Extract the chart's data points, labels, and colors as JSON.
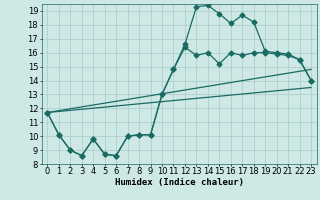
{
  "xlabel": "Humidex (Indice chaleur)",
  "bg_color": "#cde8e5",
  "grid_color": "#aecfcc",
  "line_color": "#1a6b65",
  "xlim": [
    -0.5,
    23.5
  ],
  "ylim": [
    8,
    19.5
  ],
  "yticks": [
    8,
    9,
    10,
    11,
    12,
    13,
    14,
    15,
    16,
    17,
    18,
    19
  ],
  "xticks": [
    0,
    1,
    2,
    3,
    4,
    5,
    6,
    7,
    8,
    9,
    10,
    11,
    12,
    13,
    14,
    15,
    16,
    17,
    18,
    19,
    20,
    21,
    22,
    23
  ],
  "line1_x": [
    0,
    1,
    2,
    3,
    4,
    5,
    6,
    7,
    8,
    9,
    10,
    11,
    12,
    13,
    14,
    15,
    16,
    17,
    18,
    19,
    20,
    21,
    22,
    23
  ],
  "line1_y": [
    11.7,
    10.1,
    9.0,
    8.6,
    9.8,
    8.7,
    8.6,
    10.0,
    10.1,
    10.1,
    13.0,
    14.8,
    16.4,
    15.8,
    16.0,
    15.2,
    16.0,
    15.8,
    16.0,
    16.0,
    15.9,
    15.8,
    15.5,
    14.0
  ],
  "line2_x": [
    0,
    1,
    2,
    3,
    4,
    5,
    6,
    7,
    8,
    9,
    10,
    11,
    12,
    13,
    14,
    15,
    16,
    17,
    18,
    19,
    20,
    21,
    22,
    23
  ],
  "line2_y": [
    11.7,
    10.1,
    9.0,
    8.6,
    9.8,
    8.7,
    8.6,
    10.0,
    10.1,
    10.1,
    13.0,
    14.8,
    16.6,
    19.3,
    19.4,
    18.8,
    18.1,
    18.7,
    18.2,
    16.1,
    16.0,
    15.9,
    15.5,
    14.0
  ],
  "line3_x": [
    0,
    23
  ],
  "line3_y": [
    11.7,
    14.8
  ],
  "line4_x": [
    0,
    23
  ],
  "line4_y": [
    11.7,
    13.5
  ],
  "marker": "D",
  "markersize": 2.5,
  "linewidth": 0.9,
  "xlabel_fontsize": 6.5,
  "tick_fontsize": 6
}
